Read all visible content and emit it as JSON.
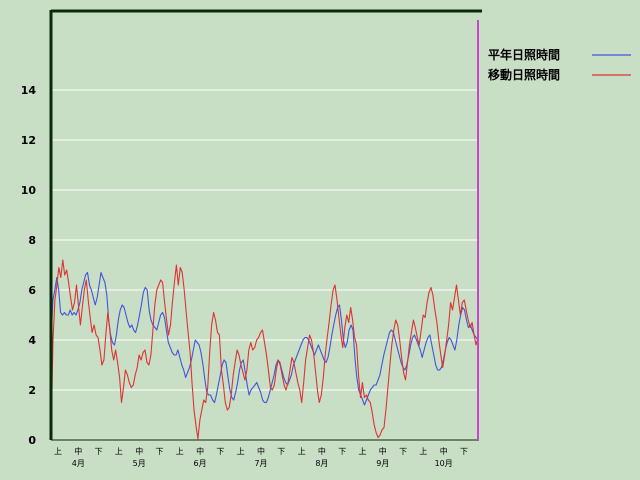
{
  "chart_data": {
    "type": "line",
    "ylim": [
      0,
      16
    ],
    "y_ticks": [
      "0",
      "2",
      "4",
      "6",
      "8",
      "10",
      "12",
      "14"
    ],
    "grid": true,
    "legend_position": "top-right",
    "period_ticks": [
      "上",
      "中",
      "下",
      "上",
      "中",
      "下",
      "上",
      "中",
      "下",
      "上",
      "中",
      "下",
      "上",
      "中",
      "下",
      "上",
      "中",
      "下",
      "上",
      "中",
      "下"
    ],
    "month_labels": [
      "4月",
      "5月",
      "6月",
      "7月",
      "8月",
      "9月",
      "10月"
    ],
    "colors": {
      "background": "#c8dfc5",
      "series_normal": "#4455dd",
      "series_moving": "#dd3333",
      "axis": "#0a2a0a",
      "marker": "#cc44cc"
    },
    "series": [
      {
        "name": "平年日照時間",
        "values": [
          4.0,
          5.6,
          6.0,
          6.5,
          6.0,
          5.1,
          5.0,
          5.1,
          5.0,
          5.0,
          5.2,
          5.0,
          5.1,
          5.0,
          5.2,
          5.5,
          6.0,
          6.3,
          6.6,
          6.7,
          6.2,
          6.0,
          5.7,
          5.4,
          5.7,
          6.2,
          6.7,
          6.5,
          6.3,
          5.8,
          4.8,
          4.2,
          3.9,
          3.8,
          4.2,
          4.8,
          5.2,
          5.4,
          5.3,
          5.0,
          4.7,
          4.5,
          4.6,
          4.4,
          4.3,
          4.6,
          5.0,
          5.4,
          5.9,
          6.1,
          6.0,
          5.2,
          4.8,
          4.6,
          4.5,
          4.4,
          4.7,
          5.0,
          5.1,
          4.9,
          4.4,
          3.9,
          3.7,
          3.5,
          3.4,
          3.4,
          3.6,
          3.3,
          3.0,
          2.8,
          2.5,
          2.7,
          2.9,
          3.2,
          3.6,
          4.0,
          3.9,
          3.8,
          3.5,
          3.0,
          2.4,
          1.9,
          1.8,
          1.8,
          1.6,
          1.5,
          1.8,
          2.2,
          2.6,
          3.0,
          3.2,
          3.1,
          2.5,
          2.0,
          1.7,
          1.6,
          1.9,
          2.3,
          2.8,
          3.1,
          3.2,
          2.7,
          2.2,
          1.8,
          2.0,
          2.1,
          2.2,
          2.3,
          2.1,
          1.9,
          1.6,
          1.5,
          1.5,
          1.7,
          2.0,
          2.3,
          2.6,
          3.0,
          3.2,
          3.1,
          2.8,
          2.5,
          2.3,
          2.2,
          2.4,
          2.6,
          3.0,
          3.2,
          3.4,
          3.6,
          3.8,
          4.0,
          4.1,
          4.1,
          4.0,
          3.8,
          3.6,
          3.4,
          3.6,
          3.8,
          3.6,
          3.4,
          3.2,
          3.1,
          3.3,
          3.7,
          4.2,
          4.6,
          5.0,
          5.3,
          5.4,
          4.8,
          4.0,
          3.7,
          3.9,
          4.4,
          4.6,
          4.4,
          3.3,
          2.5,
          2.0,
          1.8,
          1.6,
          1.4,
          1.6,
          1.8,
          2.0,
          2.1,
          2.2,
          2.2,
          2.4,
          2.6,
          3.0,
          3.4,
          3.7,
          4.0,
          4.3,
          4.4,
          4.3,
          4.0,
          3.7,
          3.4,
          3.1,
          2.9,
          2.8,
          3.0,
          3.4,
          3.8,
          4.1,
          4.2,
          4.0,
          3.8,
          3.6,
          3.3,
          3.6,
          3.9,
          4.1,
          4.2,
          3.8,
          3.4,
          3.0,
          2.8,
          2.8,
          2.9,
          3.2,
          3.6,
          3.9,
          4.1,
          4.0,
          3.8,
          3.6,
          4.0,
          4.6,
          5.0,
          5.3,
          5.2,
          4.8,
          4.5,
          4.6,
          4.4,
          4.2,
          4.1,
          4.0
        ]
      },
      {
        "name": "移動日照時間",
        "values": [
          0.1,
          4.0,
          5.6,
          6.2,
          6.9,
          6.5,
          7.2,
          6.6,
          6.8,
          6.3,
          5.7,
          5.2,
          5.5,
          6.2,
          5.4,
          4.6,
          5.3,
          6.0,
          6.4,
          5.6,
          4.9,
          4.3,
          4.6,
          4.2,
          4.1,
          3.6,
          3.0,
          3.2,
          4.2,
          5.1,
          4.4,
          3.6,
          3.2,
          3.6,
          3.1,
          2.5,
          1.5,
          2.1,
          2.8,
          2.6,
          2.3,
          2.1,
          2.2,
          2.6,
          2.9,
          3.4,
          3.2,
          3.5,
          3.6,
          3.1,
          3.0,
          3.4,
          4.4,
          5.4,
          6.0,
          6.2,
          6.4,
          6.3,
          5.5,
          4.8,
          4.2,
          4.6,
          5.5,
          6.3,
          7.0,
          6.2,
          6.9,
          6.7,
          6.0,
          5.1,
          4.3,
          3.5,
          2.3,
          1.2,
          0.6,
          0.05,
          0.8,
          1.2,
          1.6,
          1.5,
          2.1,
          3.5,
          4.6,
          5.1,
          4.8,
          4.3,
          4.2,
          2.8,
          2.2,
          1.5,
          1.2,
          1.3,
          1.8,
          2.6,
          3.1,
          3.6,
          3.4,
          3.0,
          2.7,
          2.4,
          2.8,
          3.6,
          3.9,
          3.6,
          3.7,
          4.0,
          4.1,
          4.3,
          4.4,
          3.9,
          3.4,
          2.8,
          2.1,
          2.0,
          2.2,
          2.8,
          3.2,
          3.0,
          2.6,
          2.2,
          2.0,
          2.3,
          2.8,
          3.3,
          3.1,
          2.7,
          2.3,
          2.0,
          1.5,
          2.3,
          3.2,
          3.7,
          4.2,
          4.0,
          3.5,
          2.8,
          2.0,
          1.5,
          1.8,
          2.5,
          3.4,
          4.1,
          4.7,
          5.4,
          6.0,
          6.2,
          5.6,
          4.9,
          4.2,
          3.7,
          4.5,
          5.0,
          4.7,
          5.3,
          4.8,
          4.1,
          3.8,
          2.6,
          1.7,
          2.3,
          1.7,
          1.8,
          1.6,
          1.5,
          1.1,
          0.6,
          0.3,
          0.1,
          0.2,
          0.4,
          0.5,
          1.2,
          2.1,
          3.0,
          3.8,
          4.4,
          4.8,
          4.6,
          4.0,
          3.3,
          2.7,
          2.4,
          3.1,
          3.8,
          4.3,
          4.8,
          4.5,
          4.1,
          3.8,
          4.4,
          5.0,
          4.9,
          5.5,
          5.9,
          6.1,
          5.8,
          5.2,
          4.7,
          4.0,
          3.4,
          2.9,
          3.4,
          4.0,
          4.6,
          5.5,
          5.2,
          5.7,
          6.2,
          5.6,
          5.0,
          5.5,
          5.6,
          5.2,
          4.8,
          4.5,
          4.7,
          4.2,
          3.8,
          4.1
        ]
      }
    ]
  }
}
